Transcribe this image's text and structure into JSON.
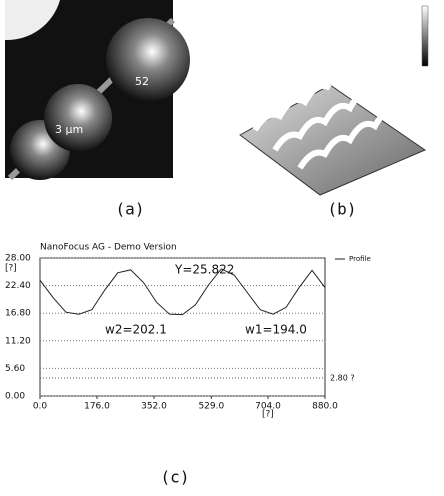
{
  "panels": {
    "a": {
      "caption": "(a)",
      "labels": [
        "52",
        "3 μm"
      ]
    },
    "b": {
      "caption": "(b)"
    },
    "c": {
      "caption": "(c)"
    }
  },
  "chart_data": {
    "type": "line",
    "title": "NanoFocus AG - Demo Version",
    "x_label": "[?]",
    "y_label": "[?]",
    "x": [
      0,
      40,
      80,
      120,
      160,
      200,
      240,
      280,
      320,
      360,
      400,
      440,
      480,
      520,
      560,
      600,
      640,
      680,
      720,
      760,
      800,
      840,
      880
    ],
    "series": [
      {
        "name": "Profile",
        "color": "#222222",
        "values": [
          23.5,
          20.0,
          17.0,
          16.6,
          17.5,
          21.5,
          25.0,
          25.6,
          23.0,
          19.0,
          16.6,
          16.5,
          18.5,
          22.5,
          25.8,
          24.5,
          21.0,
          17.5,
          16.6,
          18.0,
          22.0,
          25.5,
          22.0
        ]
      }
    ],
    "xlim": [
      0,
      880
    ],
    "ylim": [
      0,
      28
    ],
    "xticks": [
      {
        "value": 0,
        "label": "0.0"
      },
      {
        "value": 176,
        "label": "176.0"
      },
      {
        "value": 352,
        "label": "352.0"
      },
      {
        "value": 529,
        "label": "529.0"
      },
      {
        "value": 704,
        "label": "704.0"
      },
      {
        "value": 880,
        "label": "880.0"
      }
    ],
    "yticks": [
      {
        "value": 0,
        "label": "0.00"
      },
      {
        "value": 5.6,
        "label": "5.60"
      },
      {
        "value": 11.2,
        "label": "11.20"
      },
      {
        "value": 16.8,
        "label": "16.80"
      },
      {
        "value": 22.4,
        "label": "22.40"
      },
      {
        "value": 28,
        "label": "28.00"
      }
    ],
    "grid": true,
    "legend": "upper right",
    "annotations": [
      "Y=25.822",
      "w2=202.1",
      "w1=194.0",
      "2.80 ?"
    ]
  }
}
